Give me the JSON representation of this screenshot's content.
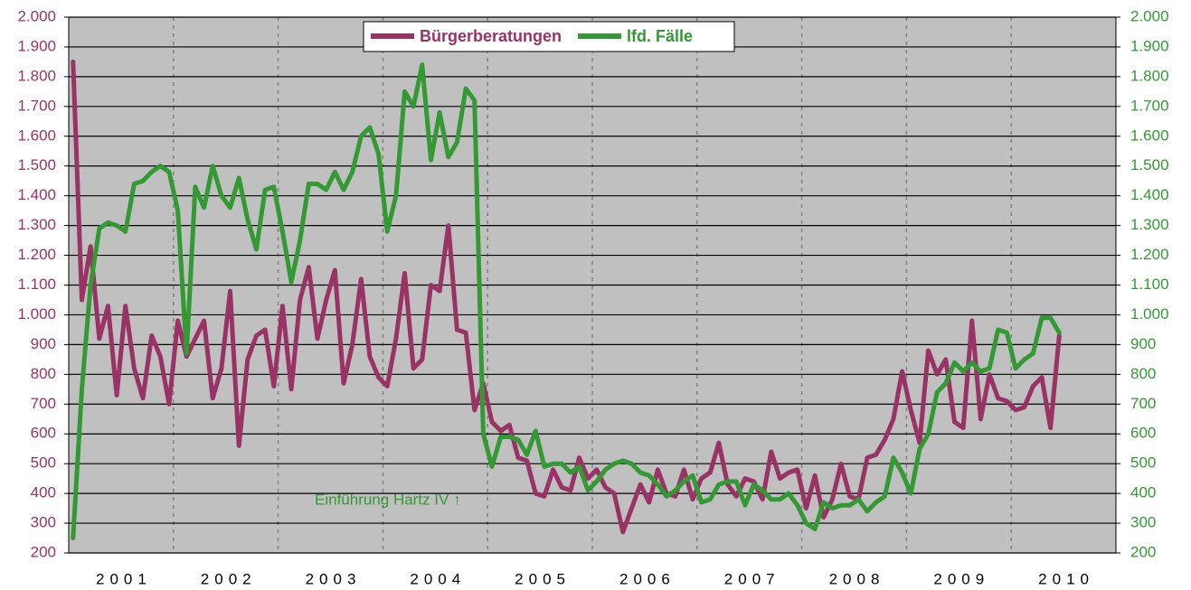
{
  "chart_data": {
    "type": "line",
    "categories": [
      null,
      null,
      null,
      null,
      null,
      "2001",
      null,
      null,
      null,
      null,
      null,
      null,
      null,
      null,
      null,
      null,
      null,
      "2002",
      null,
      null,
      null,
      null,
      null,
      null,
      null,
      null,
      null,
      null,
      null,
      "2003",
      null,
      null,
      null,
      null,
      null,
      null,
      null,
      null,
      null,
      null,
      null,
      "2004",
      null,
      null,
      null,
      null,
      null,
      null,
      null,
      null,
      null,
      null,
      null,
      "2005",
      null,
      null,
      null,
      null,
      null,
      null,
      null,
      null,
      null,
      null,
      null,
      "2006",
      null,
      null,
      null,
      null,
      null,
      null,
      null,
      null,
      null,
      null,
      null,
      "2007",
      null,
      null,
      null,
      null,
      null,
      null,
      null,
      null,
      null,
      null,
      null,
      "2008",
      null,
      null,
      null,
      null,
      null,
      null,
      null,
      null,
      null,
      null,
      null,
      "2009",
      null,
      null,
      null,
      null,
      null,
      null,
      null,
      null,
      null,
      null,
      null,
      "2010",
      null,
      null,
      null,
      null,
      null,
      null
    ],
    "series": [
      {
        "name": "Bürgerberatungen",
        "color": "#993366",
        "values": [
          1850,
          1050,
          1230,
          920,
          1030,
          730,
          1030,
          820,
          720,
          930,
          860,
          700,
          980,
          860,
          920,
          980,
          720,
          820,
          1080,
          560,
          850,
          930,
          950,
          760,
          1030,
          750,
          1050,
          1160,
          920,
          1050,
          1150,
          770,
          900,
          1120,
          860,
          790,
          760,
          920,
          1140,
          820,
          850,
          1100,
          1080,
          1300,
          950,
          940,
          680,
          770,
          640,
          610,
          630,
          520,
          510,
          400,
          390,
          480,
          420,
          410,
          520,
          450,
          480,
          420,
          400,
          270,
          350,
          430,
          370,
          480,
          400,
          390,
          480,
          380,
          450,
          470,
          570,
          430,
          390,
          450,
          440,
          380,
          540,
          450,
          470,
          480,
          350,
          460,
          320,
          380,
          500,
          390,
          380,
          520,
          530,
          580,
          650,
          810,
          680,
          570,
          880,
          800,
          850,
          640,
          620,
          980,
          650,
          800,
          720,
          710,
          680,
          690,
          760,
          790,
          620,
          930,
          null,
          null,
          null,
          null,
          null,
          null
        ]
      },
      {
        "name": "lfd. Fälle",
        "color": "#339933",
        "axis": "y2",
        "values": [
          250,
          750,
          1100,
          1290,
          1310,
          1300,
          1280,
          1440,
          1450,
          1480,
          1500,
          1480,
          1350,
          870,
          1430,
          1360,
          1500,
          1400,
          1360,
          1460,
          1320,
          1220,
          1420,
          1430,
          1280,
          1110,
          1250,
          1440,
          1440,
          1420,
          1480,
          1420,
          1480,
          1600,
          1630,
          1540,
          1280,
          1400,
          1750,
          1700,
          1840,
          1520,
          1680,
          1530,
          1580,
          1760,
          1720,
          600,
          490,
          590,
          590,
          580,
          530,
          610,
          490,
          500,
          500,
          470,
          490,
          410,
          440,
          480,
          500,
          510,
          500,
          470,
          460,
          430,
          390,
          410,
          440,
          460,
          370,
          380,
          430,
          440,
          440,
          360,
          430,
          410,
          380,
          380,
          400,
          360,
          300,
          280,
          370,
          350,
          360,
          360,
          380,
          340,
          370,
          390,
          520,
          470,
          400,
          550,
          600,
          740,
          770,
          840,
          810,
          840,
          810,
          820,
          950,
          940,
          820,
          850,
          870,
          990,
          990,
          940,
          null,
          null,
          null,
          null,
          null,
          null
        ]
      }
    ],
    "ylim": [
      200,
      2000
    ],
    "yticks": [
      200,
      300,
      400,
      500,
      600,
      700,
      800,
      900,
      {
        "value": 1000,
        "label": "1.000"
      },
      {
        "value": 1100,
        "label": "1.100"
      },
      {
        "value": 1200,
        "label": "1.200"
      },
      {
        "value": 1300,
        "label": "1.300"
      },
      {
        "value": 1400,
        "label": "1.400"
      },
      {
        "value": 1500,
        "label": "1.500"
      },
      {
        "value": 1600,
        "label": "1.600"
      },
      {
        "value": 1700,
        "label": "1.700"
      },
      {
        "value": 1800,
        "label": "1.800"
      },
      {
        "value": 1900,
        "label": "1.900"
      },
      {
        "value": 2000,
        "label": "2.000"
      }
    ],
    "y2lim": [
      200,
      2000
    ],
    "y2ticks": [
      200,
      300,
      400,
      500,
      600,
      700,
      800,
      900,
      {
        "value": 1000,
        "label": "1.000"
      },
      {
        "value": 1100,
        "label": "1.100"
      },
      {
        "value": 1200,
        "label": "1.200"
      },
      {
        "value": 1300,
        "label": "1.300"
      },
      {
        "value": 1400,
        "label": "1.400"
      },
      {
        "value": 1500,
        "label": "1.500"
      },
      {
        "value": 1600,
        "label": "1.600"
      },
      {
        "value": 1700,
        "label": "1.700"
      },
      {
        "value": 1800,
        "label": "1.800"
      },
      {
        "value": 1900,
        "label": "1.900"
      },
      {
        "value": 2000,
        "label": "2.000"
      }
    ],
    "grid": true,
    "legend": "top",
    "annotation": "Einführung Hartz IV ↑"
  }
}
